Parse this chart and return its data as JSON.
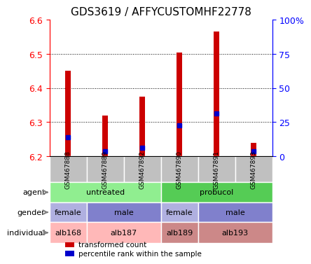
{
  "title": "GDS3619 / AFFYCUSTOMHF22778",
  "samples": [
    "GSM467888",
    "GSM467889",
    "GSM467892",
    "GSM467890",
    "GSM467891",
    "GSM467893"
  ],
  "red_bar_bottom": [
    6.2,
    6.2,
    6.2,
    6.2,
    6.2,
    6.2
  ],
  "red_bar_top": [
    6.45,
    6.32,
    6.375,
    6.505,
    6.565,
    6.24
  ],
  "blue_dot_y": [
    6.255,
    6.215,
    6.225,
    6.29,
    6.325,
    6.215
  ],
  "ylim": [
    6.2,
    6.6
  ],
  "yticks_left": [
    6.2,
    6.3,
    6.4,
    6.5,
    6.6
  ],
  "yticks_right_vals": [
    0,
    25,
    50,
    75,
    100
  ],
  "yticks_right_labels": [
    "0",
    "25",
    "50",
    "75",
    "100%"
  ],
  "left_color": "red",
  "right_color": "blue",
  "bar_color": "#cc0000",
  "dot_color": "#0000cc",
  "sample_box_color": "#c0c0c0",
  "agent_untreated_color": "#90ee90",
  "agent_probucol_color": "#66cc66",
  "gender_female_color": "#b0b0e0",
  "gender_male_color": "#8080cc",
  "individual_alb168_color": "#ffb0b0",
  "individual_alb187_color": "#ffb0b0",
  "individual_alb189_color": "#cc8080",
  "individual_alb193_color": "#cc8080",
  "agent_labels": [
    "untreated",
    "probucol"
  ],
  "gender_labels": [
    "female",
    "male",
    "female",
    "male"
  ],
  "individual_labels": [
    "alb168",
    "alb187",
    "alb189",
    "alb193"
  ],
  "legend_red": "transformed count",
  "legend_blue": "percentile rank within the sample"
}
